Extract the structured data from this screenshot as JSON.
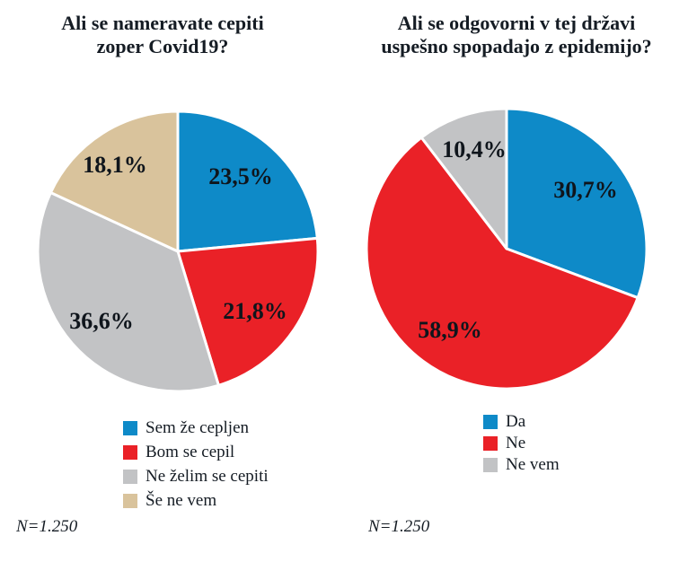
{
  "chart_data": [
    {
      "type": "pie",
      "title": "Ali se nameravate cepiti zoper Covid19?",
      "title_lines": [
        "Ali se nameravate cepiti",
        "zoper Covid19?"
      ],
      "categories": [
        "Sem že cepljen",
        "Bom se cepil",
        "Ne želim se cepiti",
        "Še ne vem"
      ],
      "values": [
        23.5,
        21.8,
        36.6,
        18.1
      ],
      "value_labels": [
        "23,5%",
        "21,8%",
        "36,6%",
        "18,1%"
      ],
      "colors": [
        "#0e8ac8",
        "#ea2127",
        "#c2c3c5",
        "#d9c39c"
      ],
      "start_angle": 0,
      "direction": "clockwise",
      "slice_border_color": "#ffffff",
      "legend_position": "bottom",
      "note": "N=1.250"
    },
    {
      "type": "pie",
      "title": "Ali se odgovorni v tej državi uspešno spopadajo z epidemijo?",
      "title_lines": [
        "Ali se odgovorni v tej državi",
        "uspešno spopadajo z epidemijo?"
      ],
      "categories": [
        "Da",
        "Ne",
        "Ne vem"
      ],
      "values": [
        30.7,
        58.9,
        10.4
      ],
      "value_labels": [
        "30,7%",
        "58,9%",
        "10,4%"
      ],
      "colors": [
        "#0e8ac8",
        "#ea2127",
        "#c2c3c5"
      ],
      "start_angle": 0,
      "direction": "clockwise",
      "slice_border_color": "#ffffff",
      "legend_position": "bottom",
      "note": "N=1.250"
    }
  ]
}
